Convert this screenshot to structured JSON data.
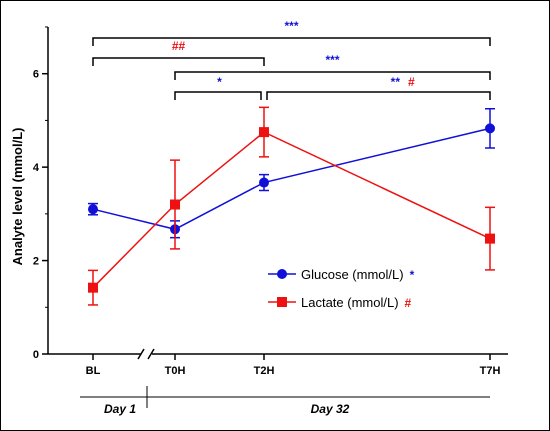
{
  "chart_data": {
    "type": "line",
    "x": [
      "BL",
      "T0H",
      "T2H",
      "T7H"
    ],
    "ylabel": "Analyte level (mmol/L)",
    "ylim": [
      0,
      7
    ],
    "yticks": [
      "0",
      "2",
      "4",
      "6"
    ],
    "grid": false,
    "legend_position": "right",
    "series": [
      {
        "name": "Glucose (mmol/L)",
        "marker": "circle",
        "color": "#1010d8",
        "legend_symbol": "*",
        "values": [
          3.1,
          2.67,
          3.67,
          4.83
        ],
        "errors": [
          0.12,
          0.18,
          0.17,
          0.42
        ]
      },
      {
        "name": "Lactate (mmol/L)",
        "marker": "square",
        "color": "#ee1111",
        "legend_symbol": "#",
        "values": [
          1.42,
          3.2,
          4.75,
          2.47
        ],
        "errors": [
          0.37,
          0.95,
          0.53,
          0.67
        ]
      }
    ],
    "significance": [
      {
        "from": "BL",
        "to": "T7H",
        "label": "***",
        "color": "#1010d8"
      },
      {
        "from": "BL",
        "to": "T2H",
        "label": "##",
        "color": "#ee1111"
      },
      {
        "from": "T0H",
        "to": "T7H",
        "label": "***",
        "color": "#1010d8"
      },
      {
        "from": "T0H",
        "to": "T2H",
        "label": "*",
        "color": "#1010d8"
      },
      {
        "from": "T2H",
        "to": "T7H",
        "label": "**",
        "color": "#1010d8",
        "label2": "#",
        "color2": "#ee1111"
      }
    ],
    "day_labels": [
      "Day 1",
      "Day 32"
    ]
  }
}
